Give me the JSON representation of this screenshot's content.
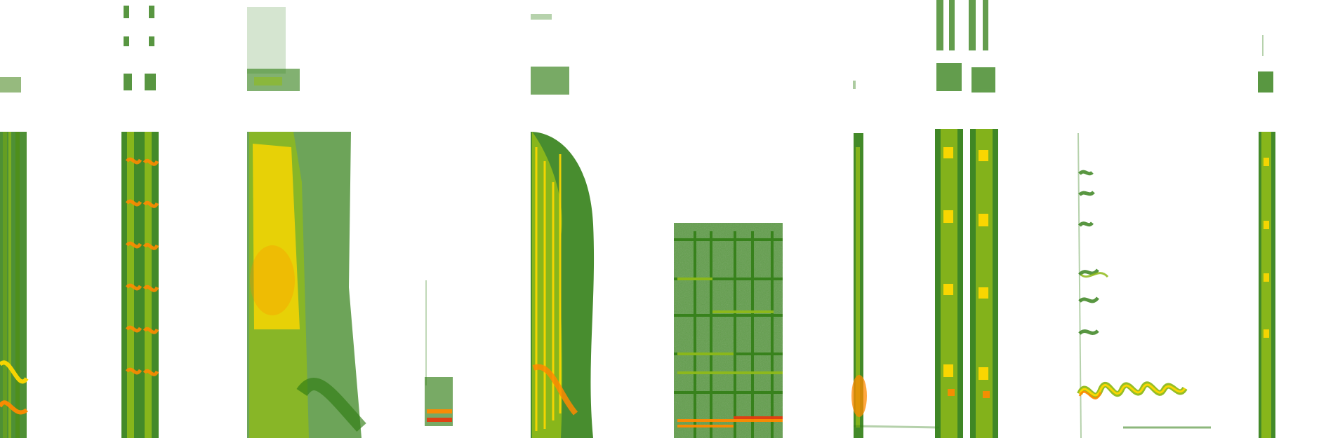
{
  "image": {
    "kind": "spectrogram-collage",
    "background": "#ffffff",
    "palette": {
      "low": "#2f7d12",
      "mid": "#8fba1a",
      "high": "#ffd800",
      "peak": "#ff8a00",
      "hot": "#e53c10"
    }
  },
  "segments": [
    {
      "id": "seg-1",
      "pattern": "vertical-bands"
    },
    {
      "id": "seg-2",
      "pattern": "double-harmonic-stack"
    },
    {
      "id": "seg-3",
      "pattern": "broadband-burst"
    },
    {
      "id": "seg-4",
      "pattern": "narrow-pulse"
    },
    {
      "id": "seg-5",
      "pattern": "dense-broadband"
    },
    {
      "id": "seg-6",
      "pattern": "grid-noise-block"
    },
    {
      "id": "seg-7",
      "pattern": "thin-vertical-trace"
    },
    {
      "id": "seg-8",
      "pattern": "twin-harmonic-stack"
    },
    {
      "id": "seg-9",
      "pattern": "tonal-sweeps"
    },
    {
      "id": "seg-10",
      "pattern": "narrow-vertical-band"
    }
  ]
}
